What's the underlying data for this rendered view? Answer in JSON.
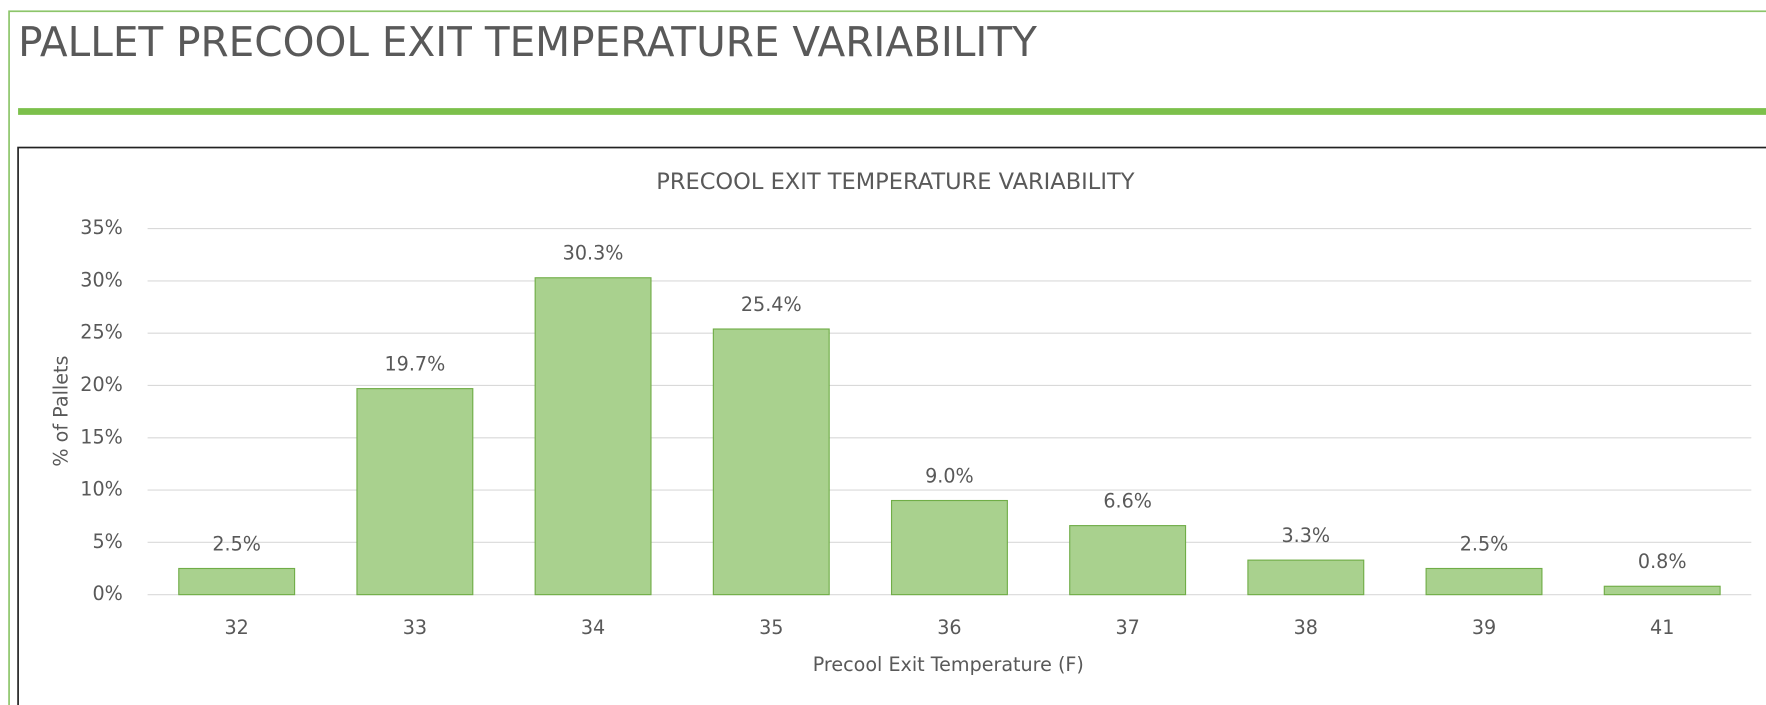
{
  "page_title": "PALLET PRECOOL EXIT TEMPERATURE VARIABILITY",
  "chart_data": {
    "type": "bar",
    "title": "PRECOOL EXIT TEMPERATURE VARIABILITY",
    "x_label": "Precool Exit Temperature (F)",
    "y_label": "% of Pallets",
    "categories": [
      "32",
      "33",
      "34",
      "35",
      "36",
      "37",
      "38",
      "39",
      "41"
    ],
    "values": [
      2.5,
      19.7,
      30.3,
      25.4,
      9.0,
      6.6,
      3.3,
      2.5,
      0.8
    ],
    "value_labels": [
      "2.5%",
      "19.7%",
      "30.3%",
      "25.4%",
      "9.0%",
      "6.6%",
      "3.3%",
      "2.5%",
      "0.8%"
    ],
    "color": "#a9d18e",
    "edge_color": "#70ad47",
    "ylim": [
      0,
      35
    ],
    "yticks": [
      {
        "value": 0,
        "label": "0%"
      },
      {
        "value": 5,
        "label": "5%"
      },
      {
        "value": 10,
        "label": "10%"
      },
      {
        "value": 15,
        "label": "15%"
      },
      {
        "value": 20,
        "label": "20%"
      },
      {
        "value": 25,
        "label": "25%"
      },
      {
        "value": 30,
        "label": "30%"
      },
      {
        "value": 35,
        "label": "35%"
      }
    ],
    "grid": true
  }
}
